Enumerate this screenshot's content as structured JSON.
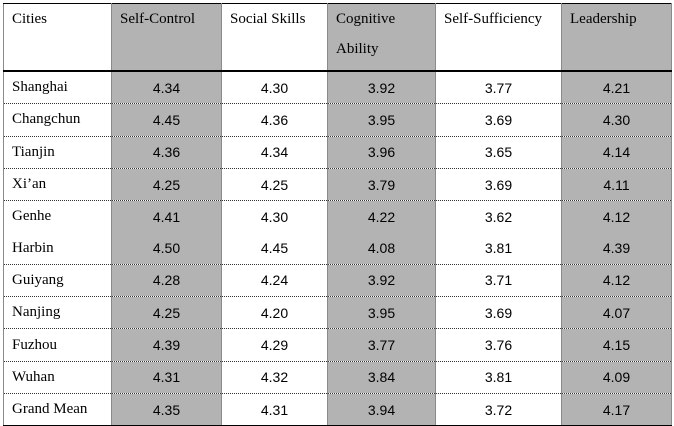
{
  "table": {
    "headers": [
      "Cities",
      "Self-Control",
      "Social Skills",
      "Cognitive Ability",
      "Self-Sufficiency",
      "Leadership"
    ],
    "rows": [
      {
        "city": "Shanghai",
        "values": [
          "4.34",
          "4.30",
          "3.92",
          "3.77",
          "4.21"
        ]
      },
      {
        "city": "Changchun",
        "values": [
          "4.45",
          "4.36",
          "3.95",
          "3.69",
          "4.30"
        ]
      },
      {
        "city": "Tianjin",
        "values": [
          "4.36",
          "4.34",
          "3.96",
          "3.65",
          "4.14"
        ]
      },
      {
        "city": "Xi’an",
        "values": [
          "4.25",
          "4.25",
          "3.79",
          "3.69",
          "4.11"
        ]
      },
      {
        "city": "Genhe",
        "values": [
          "4.41",
          "4.30",
          "4.22",
          "3.62",
          "4.12"
        ]
      },
      {
        "city": "Harbin",
        "values": [
          "4.50",
          "4.45",
          "4.08",
          "3.81",
          "4.39"
        ]
      },
      {
        "city": "Guiyang",
        "values": [
          "4.28",
          "4.24",
          "3.92",
          "3.71",
          "4.12"
        ]
      },
      {
        "city": "Nanjing",
        "values": [
          "4.25",
          "4.20",
          "3.95",
          "3.69",
          "4.07"
        ]
      },
      {
        "city": "Fuzhou",
        "values": [
          "4.39",
          "4.29",
          "3.77",
          "3.76",
          "4.15"
        ]
      },
      {
        "city": "Wuhan",
        "values": [
          "4.31",
          "4.32",
          "3.84",
          "3.81",
          "4.09"
        ]
      },
      {
        "city": "Grand Mean",
        "values": [
          "4.35",
          "4.31",
          "3.94",
          "3.72",
          "4.17"
        ]
      }
    ],
    "shade_color": "#b3b3b3"
  }
}
